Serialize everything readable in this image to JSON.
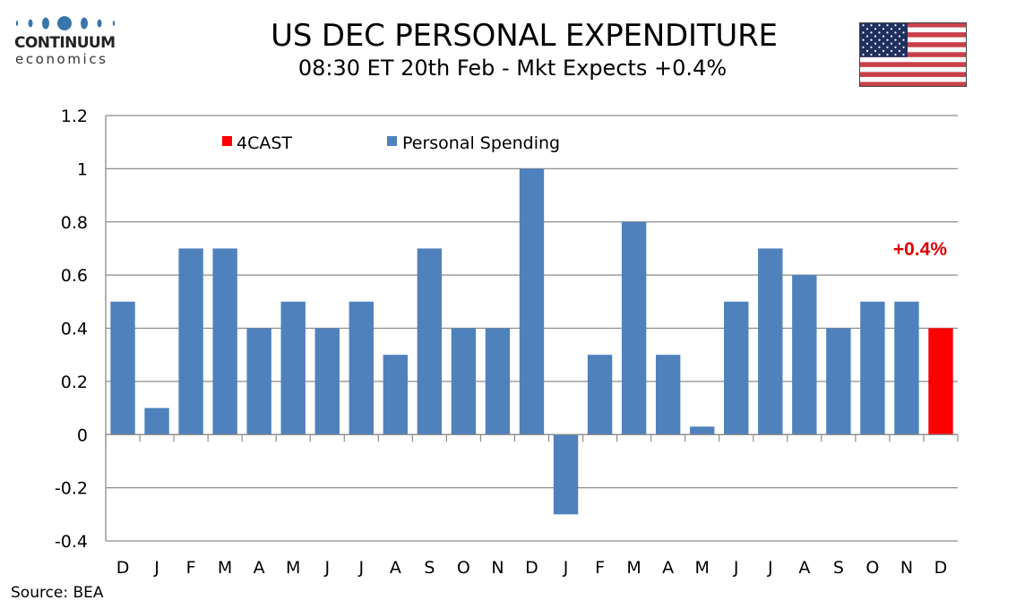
{
  "logo": {
    "name": "CONTINUUM",
    "sub": "economics",
    "color": "#3a76ae"
  },
  "header": {
    "title": "US DEC PERSONAL EXPENDITURE",
    "subtitle": "08:30 ET 20th Feb - Mkt Expects +0.4%"
  },
  "flag": {
    "icon": "us-flag-icon"
  },
  "source": "Source: BEA",
  "colors": {
    "actual": "#4f81bd",
    "forecast": "#ff0000",
    "grid": "#8c8c8c",
    "annotation": "#e00000"
  },
  "chart_data": {
    "type": "bar",
    "title": "US DEC PERSONAL EXPENDITURE",
    "subtitle": "08:30 ET 20th Feb - Mkt Expects +0.4%",
    "xlabel": "",
    "ylabel": "",
    "ylim": [
      -0.4,
      1.2
    ],
    "yticks": [
      1.2,
      1,
      0.8,
      0.6,
      0.4,
      0.2,
      0,
      -0.2,
      -0.4
    ],
    "ytick_labels": [
      "1.2",
      "1",
      "0.8",
      "0.6",
      "0.4",
      "0.2",
      "0",
      "-0.2",
      "-0.4"
    ],
    "grid": true,
    "legend_position": "top-left",
    "categories": [
      "D",
      "J",
      "F",
      "M",
      "A",
      "M",
      "J",
      "J",
      "A",
      "S",
      "O",
      "N",
      "D",
      "J",
      "F",
      "M",
      "A",
      "M",
      "J",
      "J",
      "A",
      "S",
      "O",
      "N",
      "D"
    ],
    "series": [
      {
        "name": "Personal Spending",
        "color": "#4f81bd",
        "values": [
          0.5,
          0.1,
          0.7,
          0.7,
          0.4,
          0.5,
          0.4,
          0.5,
          0.3,
          0.7,
          0.4,
          0.4,
          1.0,
          -0.3,
          0.3,
          0.8,
          0.3,
          0.03,
          0.5,
          0.7,
          0.6,
          0.4,
          0.5,
          0.5,
          null
        ]
      },
      {
        "name": "4CAST",
        "color": "#ff0000",
        "values": [
          null,
          null,
          null,
          null,
          null,
          null,
          null,
          null,
          null,
          null,
          null,
          null,
          null,
          null,
          null,
          null,
          null,
          null,
          null,
          null,
          null,
          null,
          null,
          null,
          0.4
        ]
      }
    ],
    "legend": [
      "4CAST",
      "Personal Spending"
    ],
    "annotations": [
      {
        "text": "+0.4%",
        "color": "#e00000",
        "near_category_index": 24
      }
    ]
  }
}
